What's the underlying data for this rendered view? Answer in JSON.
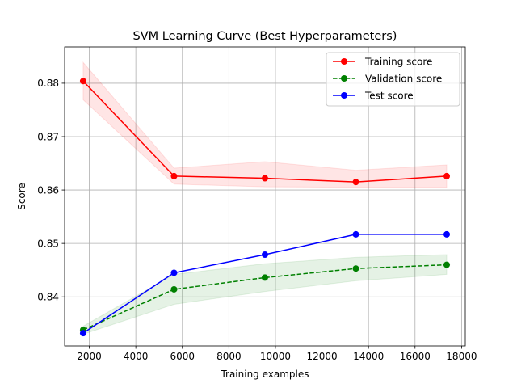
{
  "chart_data": {
    "type": "line",
    "title": "SVM Learning Curve (Best Hyperparameters)",
    "xlabel": "Training examples",
    "ylabel": "Score",
    "xlim": [
      940,
      18160
    ],
    "ylim": [
      0.8308,
      0.8868
    ],
    "xticks": [
      2000,
      4000,
      6000,
      8000,
      10000,
      12000,
      14000,
      16000,
      18000
    ],
    "xtick_labels": [
      "2000",
      "4000",
      "6000",
      "8000",
      "10000",
      "12000",
      "14000",
      "16000",
      "18000"
    ],
    "yticks": [
      0.84,
      0.85,
      0.86,
      0.87,
      0.88
    ],
    "ytick_labels": [
      "0.84",
      "0.85",
      "0.86",
      "0.87",
      "0.88"
    ],
    "grid": true,
    "legend_position": "top-right",
    "x": [
      1736,
      5643,
      9549,
      13456,
      17362
    ],
    "series": [
      {
        "name": "Training score",
        "color": "#ff0000",
        "linestyle": "solid",
        "values": [
          0.8804,
          0.8626,
          0.8622,
          0.8615,
          0.8626
        ],
        "band_lower": [
          0.8769,
          0.8611,
          0.8606,
          0.8605,
          0.8605
        ],
        "band_upper": [
          0.8839,
          0.8641,
          0.8653,
          0.8637,
          0.8647
        ],
        "band_color": "#ff0000"
      },
      {
        "name": "Validation score",
        "color": "#008000",
        "linestyle": "dashed",
        "values": [
          0.8338,
          0.8414,
          0.8436,
          0.8453,
          0.846
        ],
        "band_lower": [
          0.833,
          0.8386,
          0.841,
          0.843,
          0.8442
        ],
        "band_upper": [
          0.8345,
          0.8442,
          0.8462,
          0.8474,
          0.8479
        ],
        "band_color": "#008000"
      },
      {
        "name": "Test score",
        "color": "#0000ff",
        "linestyle": "solid",
        "values": [
          0.8332,
          0.8445,
          0.8479,
          0.8517,
          0.8517
        ]
      }
    ]
  }
}
